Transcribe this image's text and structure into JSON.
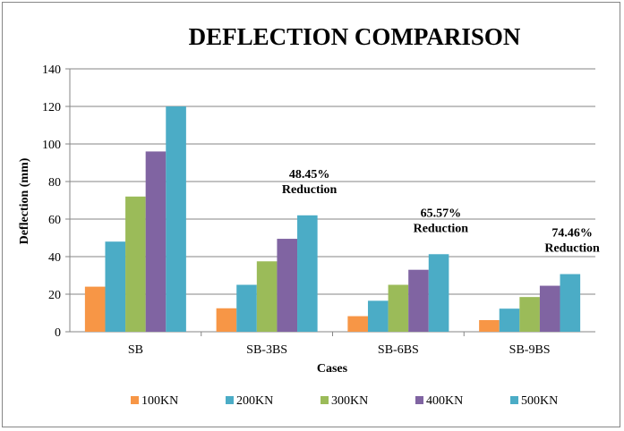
{
  "chart_data": {
    "type": "bar",
    "title": "DEFLECTION COMPARISON",
    "xlabel": "Cases",
    "ylabel": "Deflection (mm)",
    "ylim": [
      0,
      140
    ],
    "yticks": [
      0,
      20,
      40,
      60,
      80,
      100,
      120,
      140
    ],
    "grid": true,
    "legend_position": "bottom",
    "categories": [
      "SB",
      "SB-3BS",
      "SB-6BS",
      "SB-9BS"
    ],
    "series": [
      {
        "name": "100KN",
        "color": "#F79646",
        "values": [
          24,
          12.5,
          8.3,
          6.2
        ]
      },
      {
        "name": "200KN",
        "color": "#4BACC6",
        "values": [
          48,
          25,
          16.5,
          12.3
        ]
      },
      {
        "name": "300KN",
        "color": "#9BBB59",
        "values": [
          72,
          37.5,
          25,
          18.5
        ]
      },
      {
        "name": "400KN",
        "color": "#8064A2",
        "values": [
          96,
          49.5,
          33,
          24.5
        ]
      },
      {
        "name": "500KN",
        "color": "#4BACC6",
        "values": [
          120,
          62,
          41.3,
          30.7
        ]
      }
    ],
    "annotations": [
      {
        "category": "SB-3BS",
        "percent": "48.45%",
        "label": "Reduction"
      },
      {
        "category": "SB-6BS",
        "percent": "65.57%",
        "label": "Reduction"
      },
      {
        "category": "SB-9BS",
        "percent": "74.46%",
        "label": "Reduction"
      }
    ]
  }
}
